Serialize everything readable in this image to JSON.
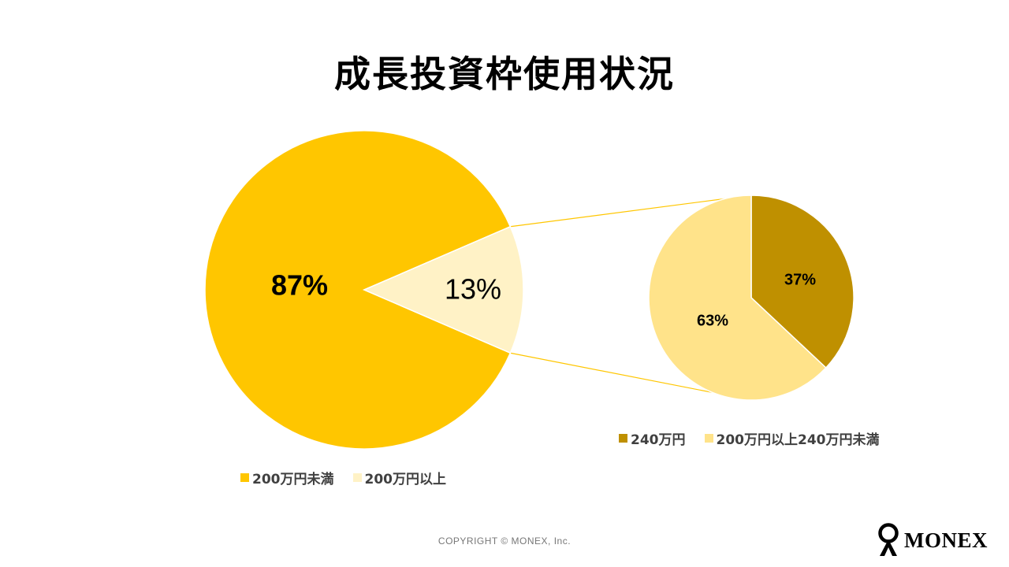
{
  "title": "成長投資枠使用状況",
  "copyright": "COPYRIGHT © MONEX, Inc.",
  "logo_text": "MONEX",
  "chart_data": [
    {
      "type": "pie",
      "slices": [
        {
          "name": "200万円未満",
          "value": 87,
          "label": "87%",
          "color": "#FFC600"
        },
        {
          "name": "200万円以上",
          "value": 13,
          "label": "13%",
          "color": "#FFF2C6"
        }
      ],
      "legend_position": "bottom"
    },
    {
      "type": "pie",
      "slices": [
        {
          "name": "240万円",
          "value": 37,
          "label": "37%",
          "color": "#BF9000"
        },
        {
          "name": "200万円以上240万円未満",
          "value": 63,
          "label": "63%",
          "color": "#FFE38A"
        }
      ],
      "legend_position": "bottom"
    }
  ]
}
